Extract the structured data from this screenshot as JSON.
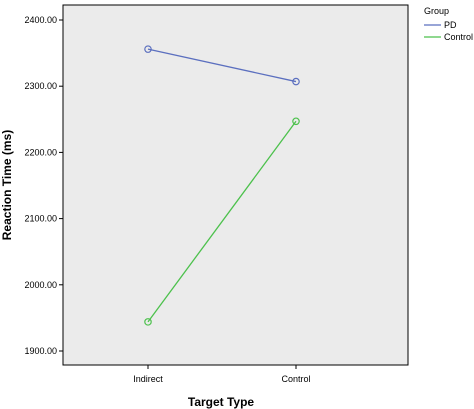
{
  "chart_data": {
    "type": "line",
    "xlabel": "Target Type",
    "ylabel": "Reaction Time (ms)",
    "categories": [
      "Indirect",
      "Control"
    ],
    "ylim": [
      1880,
      2420
    ],
    "yticks": [
      "1900.00",
      "2000.00",
      "2100.00",
      "2200.00",
      "2300.00",
      "2400.00"
    ],
    "ytick_values": [
      1900,
      2000,
      2100,
      2200,
      2300,
      2400
    ],
    "grid": false,
    "legend": {
      "title": "Group",
      "placement": "top-right-outside"
    },
    "series": [
      {
        "name": "PD",
        "values": [
          2356,
          2307
        ],
        "color": "#5b6fbf"
      },
      {
        "name": "Control",
        "values": [
          1944,
          2247
        ],
        "color": "#4cc14c"
      }
    ],
    "plot_background": "#ebebeb"
  }
}
